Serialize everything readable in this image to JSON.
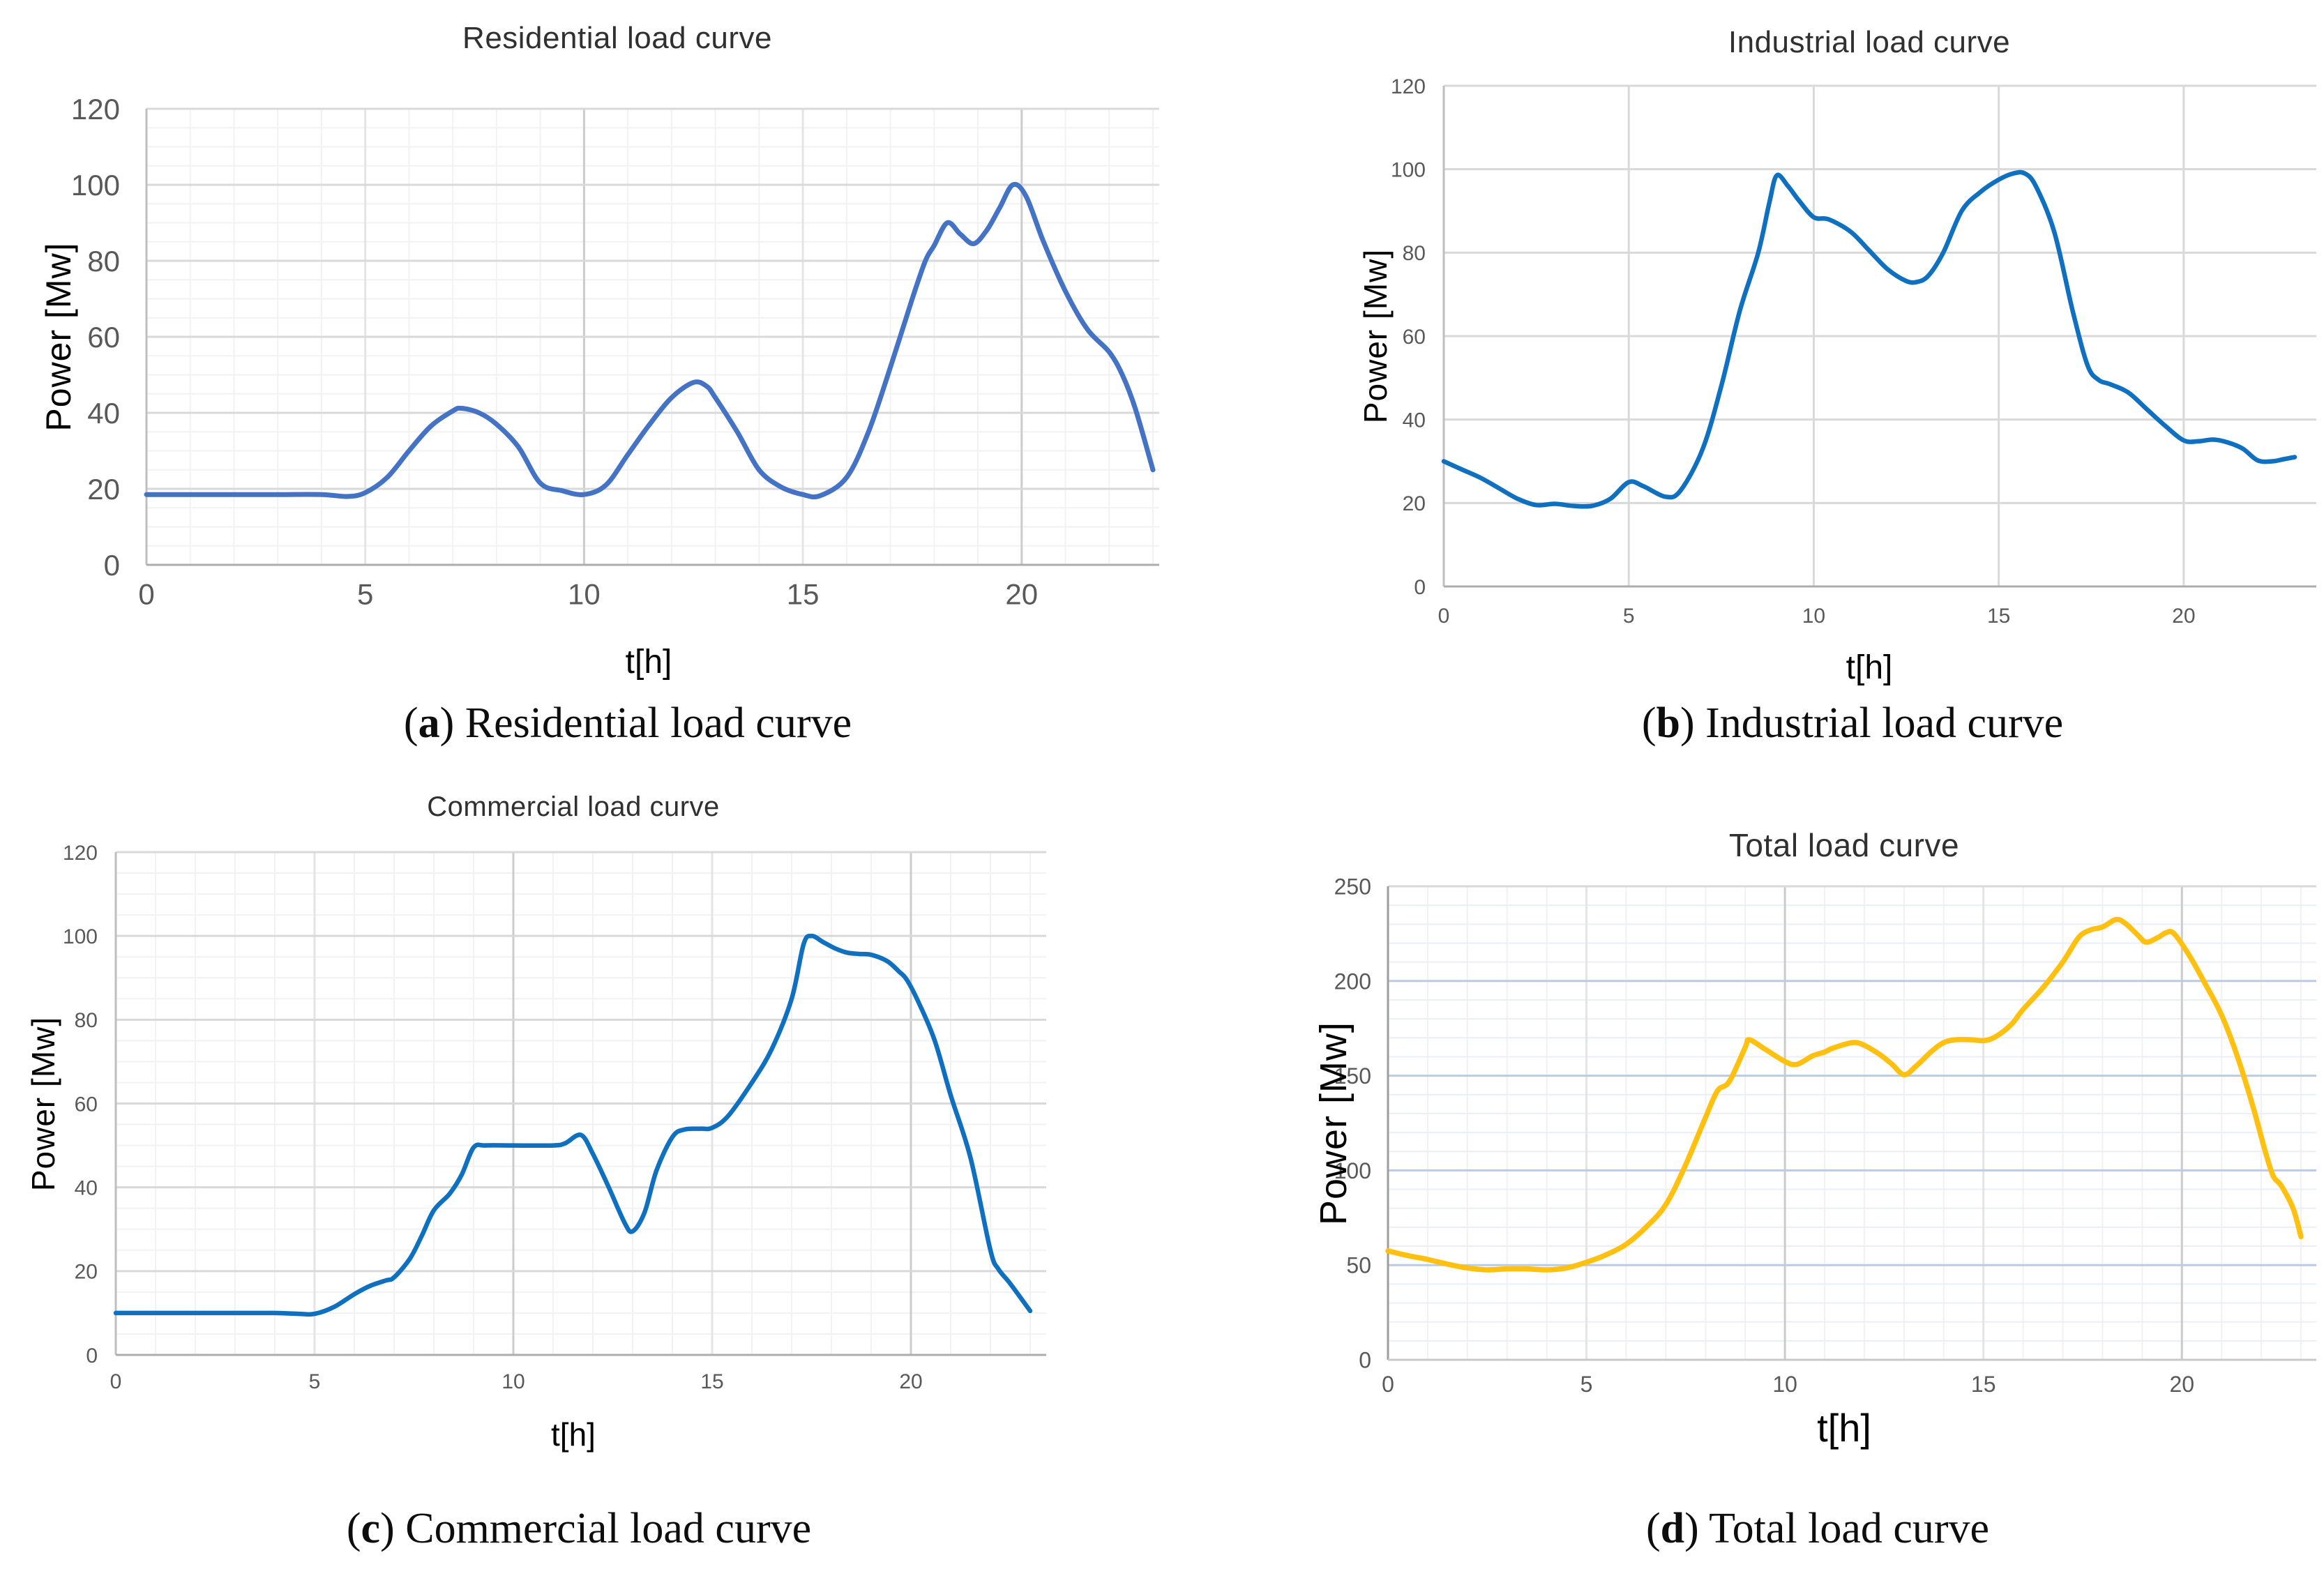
{
  "chart_data": [
    {
      "type": "line",
      "title": "Residential load curve",
      "xlabel": "t[h]",
      "ylabel": "Power [Mw]",
      "caption_pre": "(",
      "caption_letter": "a",
      "caption_post": ") Residential load curve",
      "line_color": "#4472C4",
      "xlim": [
        0,
        23
      ],
      "ylim": [
        0,
        120
      ],
      "xticks": [
        0,
        5,
        10,
        15,
        20
      ],
      "yticks": [
        0,
        20,
        40,
        60,
        80,
        100,
        120
      ],
      "x_minor_step": 1,
      "y_minor_step": 5,
      "grid": "major+minor",
      "legend": "none",
      "points": [
        [
          0,
          18.5
        ],
        [
          1,
          18.5
        ],
        [
          2,
          18.5
        ],
        [
          3,
          18.5
        ],
        [
          4,
          18.5
        ],
        [
          4.6,
          18
        ],
        [
          5,
          19
        ],
        [
          5.5,
          23
        ],
        [
          6,
          30
        ],
        [
          6.5,
          36.5
        ],
        [
          7,
          40.5
        ],
        [
          7.2,
          41.2
        ],
        [
          7.6,
          40
        ],
        [
          8,
          37
        ],
        [
          8.5,
          31
        ],
        [
          9,
          21.5
        ],
        [
          9.5,
          19.5
        ],
        [
          10,
          18.5
        ],
        [
          10.5,
          21
        ],
        [
          11,
          29
        ],
        [
          11.5,
          37
        ],
        [
          12,
          44
        ],
        [
          12.5,
          48
        ],
        [
          12.8,
          47
        ],
        [
          13,
          44
        ],
        [
          13.5,
          35
        ],
        [
          14,
          25
        ],
        [
          14.5,
          20.5
        ],
        [
          15,
          18.5
        ],
        [
          15.4,
          18.2
        ],
        [
          16,
          23
        ],
        [
          16.5,
          35
        ],
        [
          17,
          52
        ],
        [
          17.5,
          70
        ],
        [
          17.8,
          80
        ],
        [
          18,
          84
        ],
        [
          18.3,
          90
        ],
        [
          18.6,
          87
        ],
        [
          18.9,
          84.5
        ],
        [
          19.2,
          88
        ],
        [
          19.5,
          94
        ],
        [
          19.8,
          100
        ],
        [
          20.1,
          97
        ],
        [
          20.5,
          85
        ],
        [
          21,
          72
        ],
        [
          21.5,
          62
        ],
        [
          22,
          56
        ],
        [
          22.3,
          50
        ],
        [
          22.6,
          41
        ],
        [
          23,
          25
        ]
      ]
    },
    {
      "type": "line",
      "title": "Industrial load curve",
      "xlabel": "t[h]",
      "ylabel": "Power [Mw]",
      "caption_pre": "(",
      "caption_letter": "b",
      "caption_post": ") Industrial load curve",
      "line_color": "#0E70BE",
      "xlim": [
        0,
        23
      ],
      "ylim": [
        0,
        120
      ],
      "xticks": [
        0,
        5,
        10,
        15,
        20
      ],
      "yticks": [
        0,
        20,
        40,
        60,
        80,
        100,
        120
      ],
      "x_minor_step": 0,
      "y_minor_step": 0,
      "grid": "major",
      "legend": "none",
      "points": [
        [
          0,
          30
        ],
        [
          0.5,
          28
        ],
        [
          1,
          26
        ],
        [
          1.5,
          23.5
        ],
        [
          2,
          21
        ],
        [
          2.5,
          19.5
        ],
        [
          3,
          19.8
        ],
        [
          3.5,
          19.3
        ],
        [
          4,
          19.3
        ],
        [
          4.5,
          21
        ],
        [
          5,
          25
        ],
        [
          5.4,
          24
        ],
        [
          6,
          21.5
        ],
        [
          6.4,
          23
        ],
        [
          7,
          33
        ],
        [
          7.5,
          48
        ],
        [
          8,
          66
        ],
        [
          8.5,
          80
        ],
        [
          8.8,
          92
        ],
        [
          9,
          98.5
        ],
        [
          9.3,
          96
        ],
        [
          9.6,
          92.5
        ],
        [
          10,
          88.5
        ],
        [
          10.4,
          88
        ],
        [
          11,
          85
        ],
        [
          11.5,
          80.5
        ],
        [
          12,
          76
        ],
        [
          12.5,
          73.2
        ],
        [
          12.8,
          73
        ],
        [
          13.1,
          74.5
        ],
        [
          13.5,
          80
        ],
        [
          14,
          90
        ],
        [
          14.5,
          94.5
        ],
        [
          15,
          97.5
        ],
        [
          15.4,
          99
        ],
        [
          15.7,
          99
        ],
        [
          16,
          96
        ],
        [
          16.5,
          85
        ],
        [
          17,
          66
        ],
        [
          17.4,
          53
        ],
        [
          17.7,
          49.5
        ],
        [
          18,
          48.5
        ],
        [
          18.5,
          46.5
        ],
        [
          19,
          42.5
        ],
        [
          19.5,
          38.5
        ],
        [
          20,
          35
        ],
        [
          20.4,
          34.8
        ],
        [
          20.8,
          35.2
        ],
        [
          21.2,
          34.5
        ],
        [
          21.6,
          33
        ],
        [
          22,
          30.2
        ],
        [
          22.4,
          30
        ],
        [
          22.7,
          30.5
        ],
        [
          23,
          31
        ]
      ]
    },
    {
      "type": "line",
      "title": "Commercial load curve",
      "xlabel": "t[h]",
      "ylabel": "Power [Mw]",
      "caption_pre": "(",
      "caption_letter": "c",
      "caption_post": ") Commercial load curve",
      "line_color": "#0E70BE",
      "xlim": [
        0,
        23
      ],
      "ylim": [
        0,
        120
      ],
      "xticks": [
        0,
        5,
        10,
        15,
        20
      ],
      "yticks": [
        0,
        20,
        40,
        60,
        80,
        100,
        120
      ],
      "x_minor_step": 1,
      "y_minor_step": 5,
      "grid": "major+minor",
      "legend": "none",
      "points": [
        [
          0,
          10
        ],
        [
          1,
          10
        ],
        [
          2,
          10
        ],
        [
          3,
          10
        ],
        [
          4,
          10
        ],
        [
          4.6,
          9.8
        ],
        [
          5,
          9.8
        ],
        [
          5.5,
          11.5
        ],
        [
          6,
          14.5
        ],
        [
          6.4,
          16.5
        ],
        [
          6.8,
          17.8
        ],
        [
          7,
          18.5
        ],
        [
          7.4,
          23
        ],
        [
          7.7,
          28.5
        ],
        [
          8,
          34.5
        ],
        [
          8.4,
          38.5
        ],
        [
          8.7,
          43
        ],
        [
          9,
          49.5
        ],
        [
          9.3,
          50
        ],
        [
          10,
          50
        ],
        [
          11,
          50
        ],
        [
          11.3,
          50.5
        ],
        [
          11.7,
          52.5
        ],
        [
          12,
          48
        ],
        [
          12.4,
          40
        ],
        [
          12.8,
          31.5
        ],
        [
          13,
          29.5
        ],
        [
          13.3,
          34
        ],
        [
          13.6,
          44
        ],
        [
          14,
          52
        ],
        [
          14.3,
          53.8
        ],
        [
          14.7,
          54
        ],
        [
          15,
          54.2
        ],
        [
          15.4,
          57
        ],
        [
          16,
          65
        ],
        [
          16.5,
          73
        ],
        [
          17,
          85
        ],
        [
          17.3,
          98
        ],
        [
          17.5,
          100
        ],
        [
          17.8,
          98.5
        ],
        [
          18.1,
          97
        ],
        [
          18.4,
          96
        ],
        [
          18.7,
          95.7
        ],
        [
          19,
          95.5
        ],
        [
          19.4,
          94
        ],
        [
          19.7,
          91.5
        ],
        [
          19.9,
          89.5
        ],
        [
          20.2,
          84
        ],
        [
          20.6,
          75
        ],
        [
          21,
          62
        ],
        [
          21.5,
          47
        ],
        [
          22,
          25
        ],
        [
          22.2,
          20.5
        ],
        [
          22.5,
          17
        ],
        [
          23,
          10.5
        ]
      ]
    },
    {
      "type": "line",
      "title": "Total load curve",
      "xlabel": "t[h]",
      "ylabel": "Power [Mw]",
      "caption_pre": "(",
      "caption_letter": "d",
      "caption_post": ") Total load curve",
      "line_color": "#FFC010",
      "xlim": [
        0,
        23
      ],
      "ylim": [
        0,
        250
      ],
      "xticks": [
        0,
        5,
        10,
        15,
        20
      ],
      "yticks": [
        0,
        50,
        100,
        150,
        200,
        250
      ],
      "x_minor_step": 1,
      "y_minor_step": 10,
      "grid": "major+minor",
      "legend": "none",
      "points": [
        [
          0,
          57.5
        ],
        [
          0.5,
          55
        ],
        [
          1,
          53
        ],
        [
          1.5,
          50.5
        ],
        [
          2,
          48.5
        ],
        [
          2.5,
          47.5
        ],
        [
          3,
          48
        ],
        [
          3.5,
          48
        ],
        [
          4,
          47.5
        ],
        [
          4.5,
          48.5
        ],
        [
          5,
          51.5
        ],
        [
          5.5,
          55.5
        ],
        [
          6,
          61
        ],
        [
          6.5,
          70
        ],
        [
          7,
          82
        ],
        [
          7.5,
          103
        ],
        [
          8,
          128
        ],
        [
          8.3,
          142
        ],
        [
          8.6,
          147
        ],
        [
          9,
          165
        ],
        [
          9.1,
          169
        ],
        [
          9.5,
          164
        ],
        [
          10,
          157.5
        ],
        [
          10.3,
          156
        ],
        [
          10.7,
          160.5
        ],
        [
          11,
          162.5
        ],
        [
          11.2,
          164.5
        ],
        [
          11.7,
          167.5
        ],
        [
          12,
          166
        ],
        [
          12.4,
          161
        ],
        [
          12.7,
          156
        ],
        [
          13,
          150.5
        ],
        [
          13.3,
          155
        ],
        [
          13.7,
          163
        ],
        [
          14,
          167.5
        ],
        [
          14.3,
          169
        ],
        [
          14.7,
          169
        ],
        [
          15,
          168.5
        ],
        [
          15.3,
          170.5
        ],
        [
          15.7,
          177
        ],
        [
          16,
          185
        ],
        [
          16.5,
          196.5
        ],
        [
          17,
          210
        ],
        [
          17.4,
          223
        ],
        [
          17.7,
          227
        ],
        [
          18,
          228.5
        ],
        [
          18.35,
          232.5
        ],
        [
          18.6,
          230
        ],
        [
          18.9,
          224
        ],
        [
          19.1,
          220.5
        ],
        [
          19.4,
          223
        ],
        [
          19.6,
          225.5
        ],
        [
          19.8,
          225
        ],
        [
          20.2,
          213
        ],
        [
          20.6,
          198
        ],
        [
          21,
          182
        ],
        [
          21.4,
          160
        ],
        [
          21.8,
          133
        ],
        [
          22.1,
          110
        ],
        [
          22.3,
          97
        ],
        [
          22.5,
          92
        ],
        [
          22.8,
          80
        ],
        [
          23,
          65
        ]
      ]
    }
  ]
}
